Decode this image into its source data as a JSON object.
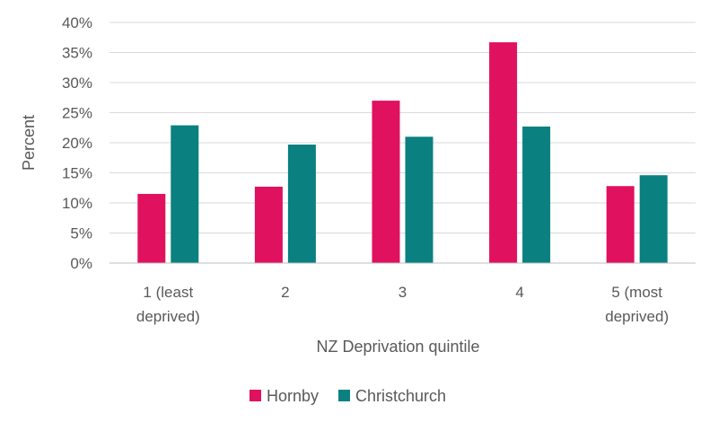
{
  "chart_data": {
    "type": "bar",
    "title": "",
    "xlabel": "NZ Deprivation quintile",
    "ylabel": "Percent",
    "categories": [
      [
        "1 (least",
        "deprived)"
      ],
      [
        "2"
      ],
      [
        "3"
      ],
      [
        "4"
      ],
      [
        "5 (most",
        "deprived)"
      ]
    ],
    "series": [
      {
        "name": "Hornby",
        "color": "#e0115f",
        "values": [
          11.5,
          12.7,
          27.0,
          36.7,
          12.8
        ]
      },
      {
        "name": "Christchurch",
        "color": "#0a8080",
        "values": [
          22.9,
          19.7,
          21.0,
          22.7,
          14.6
        ]
      }
    ],
    "ylim": [
      0,
      40
    ],
    "yticks": [
      0,
      5,
      10,
      15,
      20,
      25,
      30,
      35,
      40
    ],
    "ytick_suffix": "%",
    "grid": true,
    "legend_position": "bottom"
  }
}
